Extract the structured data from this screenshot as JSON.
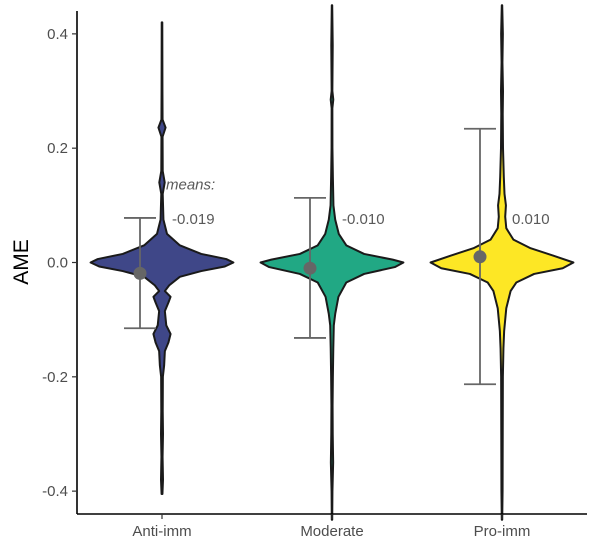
{
  "chart_data": {
    "type": "violin",
    "title": "",
    "xlabel": "",
    "ylabel": "AME",
    "ylim": [
      -0.44,
      0.44
    ],
    "yticks": [
      {
        "value": 0.4,
        "label": "0.4"
      },
      {
        "value": 0.2,
        "label": "0.2"
      },
      {
        "value": 0.0,
        "label": "0.0"
      },
      {
        "value": -0.2,
        "label": "-0.2"
      },
      {
        "value": -0.4,
        "label": "-0.4"
      }
    ],
    "categories": [
      "Anti-imm",
      "Moderate",
      "Pro-imm"
    ],
    "legend": "none",
    "grid": false,
    "means_heading": "means:",
    "series": [
      {
        "category": "Anti-imm",
        "color": "#3f4788",
        "mean": -0.019,
        "mean_label": "-0.019",
        "ci_low": -0.115,
        "ci_high": 0.078,
        "min": -0.405,
        "max": 0.42,
        "density_profile": [
          [
            0.42,
            0.004
          ],
          [
            0.3,
            0.006
          ],
          [
            0.25,
            0.008
          ],
          [
            0.236,
            0.05
          ],
          [
            0.22,
            0.008
          ],
          [
            0.16,
            0.01
          ],
          [
            0.14,
            0.038
          ],
          [
            0.12,
            0.01
          ],
          [
            0.075,
            0.02
          ],
          [
            0.05,
            0.07
          ],
          [
            0.03,
            0.25
          ],
          [
            0.015,
            0.55
          ],
          [
            0.006,
            0.9
          ],
          [
            0.0,
            1.0
          ],
          [
            -0.007,
            0.88
          ],
          [
            -0.015,
            0.55
          ],
          [
            -0.025,
            0.25
          ],
          [
            -0.04,
            0.1
          ],
          [
            -0.05,
            0.04
          ],
          [
            -0.06,
            0.12
          ],
          [
            -0.07,
            0.09
          ],
          [
            -0.085,
            0.04
          ],
          [
            -0.11,
            0.06
          ],
          [
            -0.125,
            0.12
          ],
          [
            -0.14,
            0.09
          ],
          [
            -0.155,
            0.04
          ],
          [
            -0.18,
            0.03
          ],
          [
            -0.2,
            0.012
          ],
          [
            -0.26,
            0.01
          ],
          [
            -0.3,
            0.014
          ],
          [
            -0.34,
            0.008
          ],
          [
            -0.38,
            0.014
          ],
          [
            -0.405,
            0.006
          ]
        ]
      },
      {
        "category": "Moderate",
        "color": "#21a884",
        "mean": -0.01,
        "mean_label": "-0.010",
        "ci_low": -0.132,
        "ci_high": 0.113,
        "min": -0.45,
        "max": 0.45,
        "density_profile": [
          [
            0.45,
            0.003
          ],
          [
            0.38,
            0.01
          ],
          [
            0.3,
            0.005
          ],
          [
            0.285,
            0.018
          ],
          [
            0.27,
            0.005
          ],
          [
            0.2,
            0.006
          ],
          [
            0.15,
            0.012
          ],
          [
            0.1,
            0.02
          ],
          [
            0.075,
            0.045
          ],
          [
            0.05,
            0.095
          ],
          [
            0.03,
            0.2
          ],
          [
            0.015,
            0.45
          ],
          [
            0.005,
            0.85
          ],
          [
            0.0,
            1.0
          ],
          [
            -0.008,
            0.88
          ],
          [
            -0.02,
            0.45
          ],
          [
            -0.035,
            0.2
          ],
          [
            -0.06,
            0.09
          ],
          [
            -0.09,
            0.045
          ],
          [
            -0.11,
            0.025
          ],
          [
            -0.15,
            0.018
          ],
          [
            -0.2,
            0.012
          ],
          [
            -0.25,
            0.008
          ],
          [
            -0.3,
            0.01
          ],
          [
            -0.35,
            0.016
          ],
          [
            -0.4,
            0.006
          ],
          [
            -0.45,
            0.003
          ]
        ]
      },
      {
        "category": "Pro-imm",
        "color": "#fde725",
        "mean": 0.01,
        "mean_label": "0.010",
        "ci_low": -0.213,
        "ci_high": 0.234,
        "min": -0.45,
        "max": 0.45,
        "density_profile": [
          [
            0.45,
            0.003
          ],
          [
            0.4,
            0.012
          ],
          [
            0.35,
            0.006
          ],
          [
            0.3,
            0.014
          ],
          [
            0.26,
            0.01
          ],
          [
            0.2,
            0.014
          ],
          [
            0.15,
            0.025
          ],
          [
            0.12,
            0.035
          ],
          [
            0.1,
            0.055
          ],
          [
            0.08,
            0.045
          ],
          [
            0.06,
            0.06
          ],
          [
            0.04,
            0.16
          ],
          [
            0.025,
            0.4
          ],
          [
            0.012,
            0.72
          ],
          [
            0.0,
            1.0
          ],
          [
            -0.01,
            0.85
          ],
          [
            -0.02,
            0.45
          ],
          [
            -0.035,
            0.2
          ],
          [
            -0.05,
            0.12
          ],
          [
            -0.08,
            0.06
          ],
          [
            -0.12,
            0.03
          ],
          [
            -0.15,
            0.02
          ],
          [
            -0.2,
            0.012
          ],
          [
            -0.3,
            0.01
          ],
          [
            -0.4,
            0.008
          ],
          [
            -0.45,
            0.003
          ]
        ]
      }
    ]
  }
}
